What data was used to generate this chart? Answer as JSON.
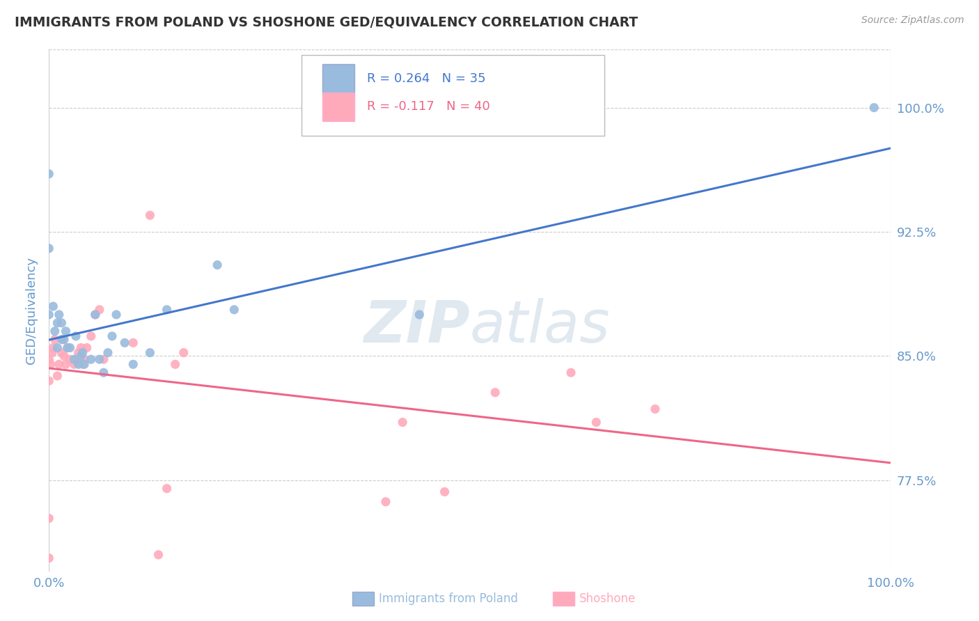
{
  "title": "IMMIGRANTS FROM POLAND VS SHOSHONE GED/EQUIVALENCY CORRELATION CHART",
  "source_text": "Source: ZipAtlas.com",
  "ylabel": "GED/Equivalency",
  "xlim": [
    0.0,
    1.0
  ],
  "ylim": [
    0.72,
    1.035
  ],
  "yticks": [
    0.775,
    0.85,
    0.925,
    1.0
  ],
  "ytick_labels": [
    "77.5%",
    "85.0%",
    "92.5%",
    "100.0%"
  ],
  "xtick_labels": [
    "0.0%",
    "100.0%"
  ],
  "xticks": [
    0.0,
    1.0
  ],
  "blue_color": "#99BBDD",
  "pink_color": "#FFAABB",
  "line_blue": "#4477CC",
  "line_pink": "#EE6688",
  "poland_x": [
    0.0,
    0.0,
    0.0,
    0.005,
    0.007,
    0.01,
    0.01,
    0.012,
    0.015,
    0.015,
    0.018,
    0.02,
    0.022,
    0.025,
    0.03,
    0.032,
    0.035,
    0.038,
    0.04,
    0.042,
    0.05,
    0.055,
    0.06,
    0.065,
    0.07,
    0.075,
    0.08,
    0.09,
    0.1,
    0.12,
    0.14,
    0.2,
    0.22,
    0.44,
    0.98
  ],
  "poland_y": [
    0.96,
    0.915,
    0.875,
    0.88,
    0.865,
    0.855,
    0.87,
    0.875,
    0.86,
    0.87,
    0.86,
    0.865,
    0.855,
    0.855,
    0.848,
    0.862,
    0.845,
    0.85,
    0.852,
    0.845,
    0.848,
    0.875,
    0.848,
    0.84,
    0.852,
    0.862,
    0.875,
    0.858,
    0.845,
    0.852,
    0.878,
    0.905,
    0.878,
    0.875,
    1.0
  ],
  "shoshone_x": [
    0.0,
    0.0,
    0.0,
    0.0,
    0.002,
    0.004,
    0.005,
    0.007,
    0.01,
    0.012,
    0.015,
    0.016,
    0.018,
    0.02,
    0.022,
    0.025,
    0.03,
    0.032,
    0.035,
    0.038,
    0.04,
    0.042,
    0.045,
    0.05,
    0.055,
    0.06,
    0.065,
    0.1,
    0.12,
    0.13,
    0.14,
    0.15,
    0.16,
    0.4,
    0.42,
    0.47,
    0.53,
    0.62,
    0.65,
    0.72
  ],
  "shoshone_y": [
    0.728,
    0.752,
    0.835,
    0.848,
    0.845,
    0.852,
    0.855,
    0.86,
    0.838,
    0.845,
    0.852,
    0.86,
    0.85,
    0.845,
    0.855,
    0.848,
    0.845,
    0.848,
    0.852,
    0.855,
    0.845,
    0.848,
    0.855,
    0.862,
    0.875,
    0.878,
    0.848,
    0.858,
    0.935,
    0.73,
    0.77,
    0.845,
    0.852,
    0.762,
    0.81,
    0.768,
    0.828,
    0.84,
    0.81,
    0.818
  ],
  "grid_color": "#CCCCCC",
  "background_color": "#FFFFFF",
  "title_color": "#333333",
  "tick_color": "#6699CC",
  "watermark_color": "#E0E8F0"
}
